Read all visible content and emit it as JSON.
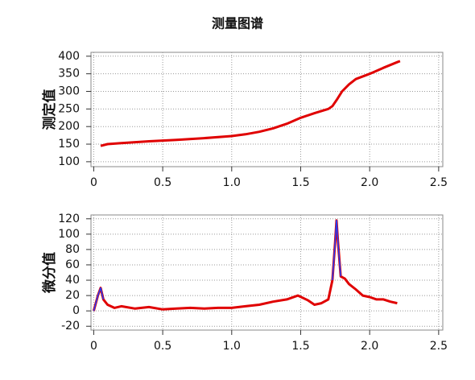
{
  "title": "测量图谱",
  "chart_data": [
    {
      "type": "line",
      "ylabel": "测定值",
      "x": [
        0.05,
        0.1,
        0.2,
        0.4,
        0.6,
        0.8,
        1.0,
        1.1,
        1.2,
        1.3,
        1.4,
        1.5,
        1.6,
        1.7,
        1.73,
        1.76,
        1.8,
        1.85,
        1.9,
        2.0,
        2.1,
        2.2,
        2.22
      ],
      "series": [
        {
          "color": "#e00000",
          "values": [
            145,
            150,
            153,
            158,
            162,
            167,
            173,
            178,
            185,
            195,
            208,
            225,
            238,
            250,
            258,
            275,
            300,
            320,
            335,
            350,
            367,
            383,
            386
          ]
        }
      ],
      "xlim": [
        -0.02,
        2.53
      ],
      "ylim": [
        86,
        411
      ],
      "xticks": [
        0,
        0.5,
        {
          "value": 1,
          "label": "1.0"
        },
        1.5,
        {
          "value": 2,
          "label": "2.0"
        },
        2.5
      ],
      "yticks": [
        100,
        150,
        200,
        250,
        300,
        350,
        400
      ],
      "grid": true
    },
    {
      "type": "line",
      "ylabel": "微分值",
      "x": [
        0,
        0.03,
        0.05,
        0.07,
        0.1,
        0.15,
        0.2,
        0.3,
        0.4,
        0.5,
        0.6,
        0.7,
        0.8,
        0.9,
        1.0,
        1.1,
        1.2,
        1.3,
        1.4,
        1.48,
        1.55,
        1.6,
        1.65,
        1.7,
        1.73,
        1.75,
        1.76,
        1.77,
        1.79,
        1.82,
        1.85,
        1.9,
        1.95,
        2.0,
        2.05,
        2.1,
        2.15,
        2.2
      ],
      "series": [
        {
          "color": "#e00000",
          "values": [
            0,
            20,
            30,
            15,
            8,
            4,
            6,
            3,
            5,
            2,
            3,
            4,
            3,
            4,
            4,
            6,
            8,
            12,
            15,
            20,
            14,
            8,
            10,
            15,
            40,
            90,
            118,
            90,
            45,
            42,
            35,
            28,
            20,
            18,
            15,
            15,
            12,
            10
          ]
        },
        {
          "color": "#1f3cff",
          "values": [
            0,
            20,
            30,
            15,
            null,
            null,
            null,
            null,
            null,
            null,
            null,
            null,
            null,
            null,
            null,
            null,
            null,
            null,
            null,
            null,
            null,
            null,
            null,
            null,
            40,
            90,
            118,
            90,
            45,
            null,
            null,
            null,
            null,
            null,
            null,
            null,
            null,
            null
          ]
        }
      ],
      "xlim": [
        -0.02,
        2.53
      ],
      "ylim": [
        -25,
        125
      ],
      "xticks": [
        0,
        0.5,
        {
          "value": 1,
          "label": "1.0"
        },
        1.5,
        {
          "value": 2,
          "label": "2.0"
        },
        2.5
      ],
      "yticks": [
        -20,
        0,
        20,
        40,
        60,
        80,
        100,
        120
      ],
      "grid": true
    }
  ]
}
